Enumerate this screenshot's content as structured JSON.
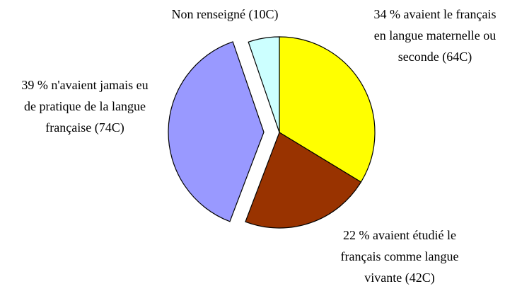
{
  "chart_data": {
    "type": "pie",
    "categories": [
      "34 %  avaient le français en langue maternelle ou seconde (64C)",
      "22 % avaient étudié le français comme langue vivante (42C)",
      "39 % n'avaient jamais eu de pratique de la langue française (74C)",
      "Non renseigné (10C)"
    ],
    "values": [
      64,
      42,
      74,
      10
    ],
    "colors": [
      "#ffff00",
      "#993300",
      "#9999ff",
      "#ccffff"
    ]
  }
}
